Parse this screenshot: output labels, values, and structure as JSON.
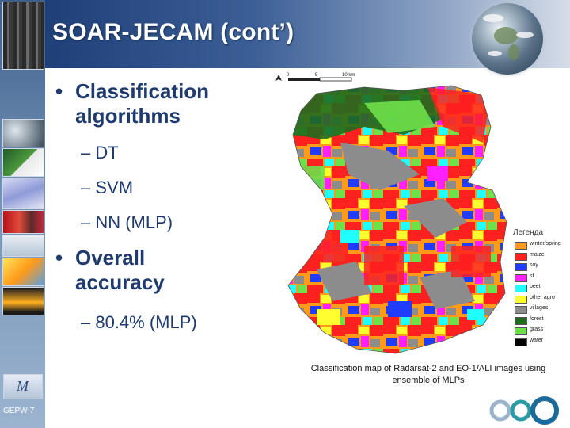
{
  "slide": {
    "title": "SOAR-JECAM (cont’)",
    "footer_label": "GEPW-7"
  },
  "bullets": [
    {
      "marker": "•",
      "text_line1": "Classification",
      "text_line2": "algorithms",
      "subitems": [
        "– DT",
        "– SVM",
        "– NN (MLP)"
      ]
    },
    {
      "marker": "•",
      "text_line1": "Overall",
      "text_line2": "accuracy",
      "subitems": [
        "– 80.4% (MLP)"
      ]
    }
  ],
  "map": {
    "scale_labels": [
      "0",
      "5",
      "10 km"
    ],
    "legend_title": "Легенда",
    "legend": [
      {
        "label": "winter/spring",
        "color": "#ff9a1a"
      },
      {
        "label": "maize",
        "color": "#ff2020"
      },
      {
        "label": "soy",
        "color": "#1f3cff"
      },
      {
        "label": "sf",
        "color": "#ff20ff"
      },
      {
        "label": "beet",
        "color": "#20ffff"
      },
      {
        "label": "other agro",
        "color": "#ffff30"
      },
      {
        "label": "villages",
        "color": "#8c8c8c"
      },
      {
        "label": "forest",
        "color": "#1e6b1e"
      },
      {
        "label": "grass",
        "color": "#6ee04a"
      },
      {
        "label": "water",
        "color": "#000000"
      }
    ],
    "caption_line1": "Classification map of Radarsat-2 and EO-1/ALI images using",
    "caption_line2": "ensemble of MLPs"
  },
  "logo_text": "M"
}
